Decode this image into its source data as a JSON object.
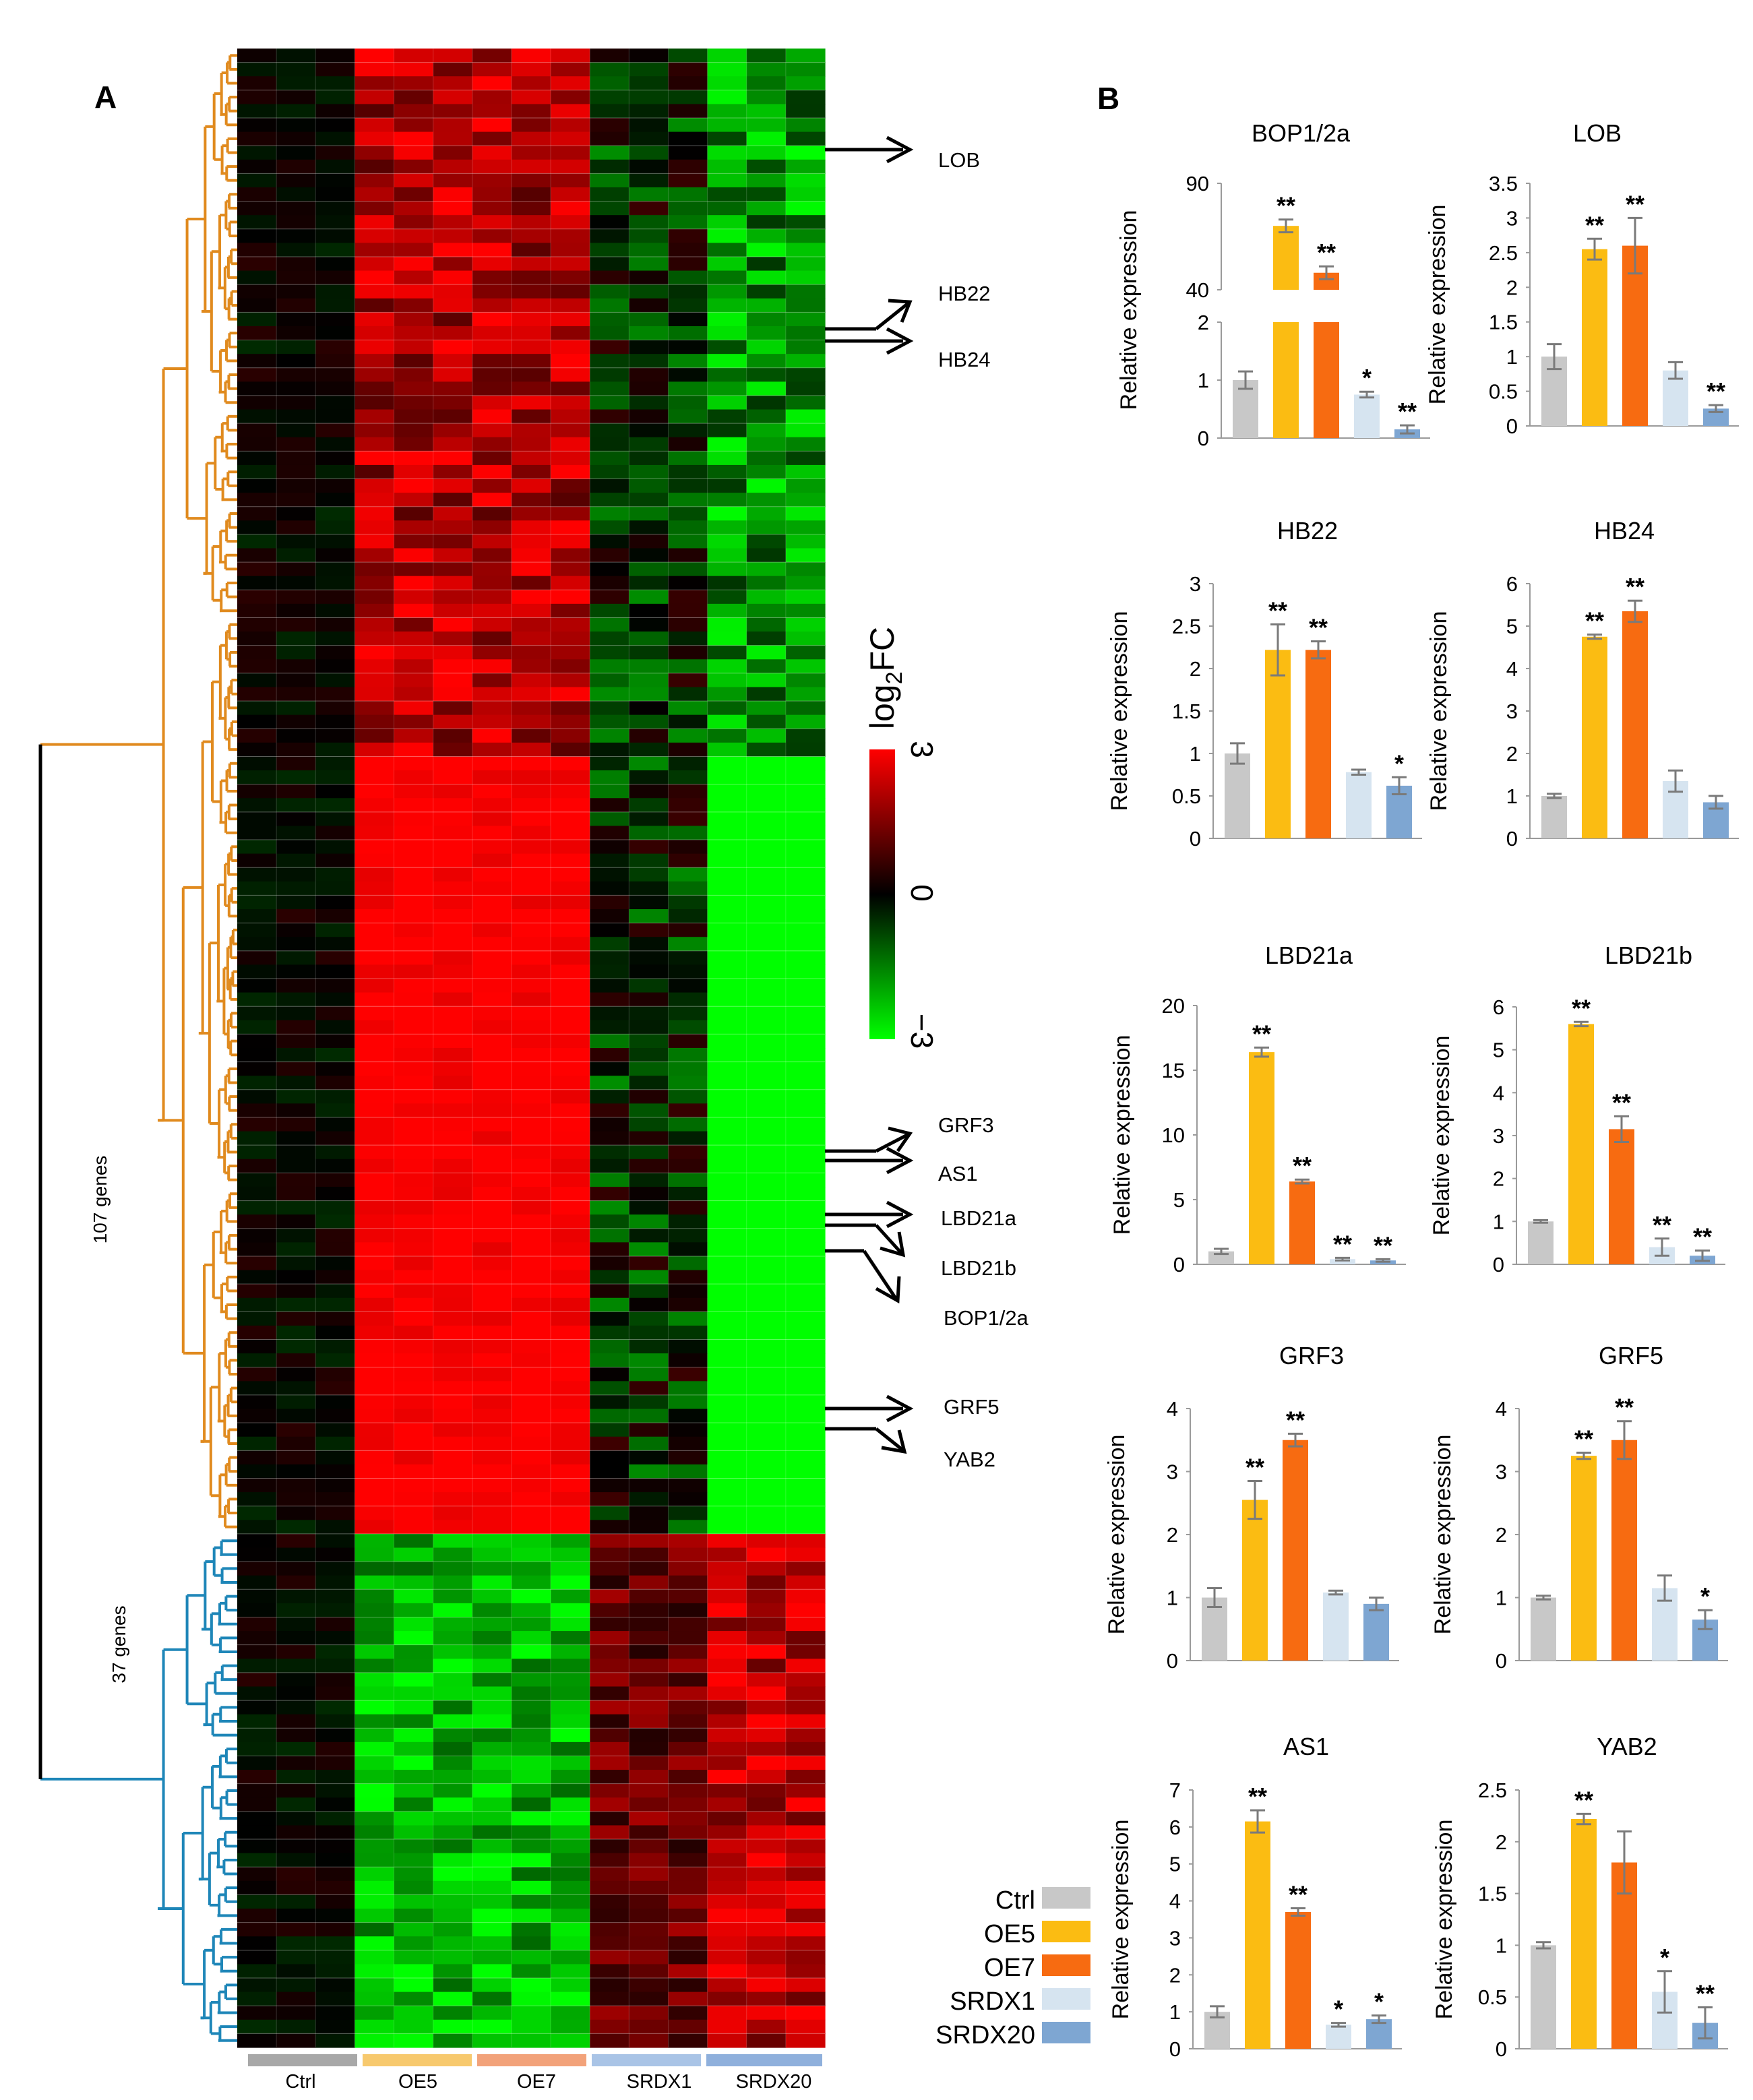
{
  "panel_labels": {
    "a": "A",
    "b": "B"
  },
  "heatmap": {
    "groups": [
      "Ctrl",
      "OE5",
      "OE7",
      "SRDX1",
      "SRDX20"
    ],
    "group_colors": [
      "#a8a8a8",
      "#f7c96e",
      "#f2a27a",
      "#a9c4e6",
      "#8fb0dc"
    ],
    "clusters": [
      {
        "label": "107 genes",
        "gene_count": 107,
        "color": "#e08a1e"
      },
      {
        "label": "37 genes",
        "gene_count": 37,
        "color": "#1e86b8"
      }
    ],
    "annotated_genes": [
      "LOB",
      "HB22",
      "HB24",
      "GRF3",
      "AS1",
      "LBD21a",
      "LBD21b",
      "BOP1/2a",
      "GRF5",
      "YAB2"
    ],
    "colorbar": {
      "title": "log2FC",
      "title_main": "log",
      "title_sub": "2",
      "title_tail": "FC",
      "max": 3,
      "mid": 0,
      "min": -3,
      "max_label": "3",
      "mid_label": "0",
      "min_label": "−3"
    }
  },
  "legend": {
    "items": [
      {
        "label": "Ctrl",
        "color": "#c8c8c8"
      },
      {
        "label": "OE5",
        "color": "#fbbc12"
      },
      {
        "label": "OE7",
        "color": "#f76b11"
      },
      {
        "label": "SRDX1",
        "color": "#d6e4f0"
      },
      {
        "label": "SRDX20",
        "color": "#7ea6d2"
      }
    ]
  },
  "chart_data": [
    {
      "type": "bar",
      "title": "BOP1/2a",
      "ylabel": "Relative expression",
      "categories": [
        "Ctrl",
        "OE5",
        "OE7",
        "SRDX1",
        "SRDX20"
      ],
      "values": [
        1.0,
        70,
        48,
        0.75,
        0.15
      ],
      "errors": [
        0.15,
        3,
        3,
        0.05,
        0.07
      ],
      "significance": [
        "",
        "**",
        "**",
        "*",
        "**"
      ],
      "broken_axis": {
        "lower_ylim": [
          0,
          2
        ],
        "lower_ticks": [
          "0",
          "1",
          "2"
        ],
        "upper_ylim": [
          40,
          90
        ],
        "upper_ticks": [
          "40",
          "90"
        ]
      }
    },
    {
      "type": "bar",
      "title": "LOB",
      "ylabel": "Relative expression",
      "categories": [
        "Ctrl",
        "OE5",
        "OE7",
        "SRDX1",
        "SRDX20"
      ],
      "values": [
        1.0,
        2.55,
        2.6,
        0.8,
        0.25
      ],
      "errors": [
        0.18,
        0.15,
        0.4,
        0.12,
        0.05
      ],
      "significance": [
        "",
        "**",
        "**",
        "",
        "**"
      ],
      "ylim": [
        0,
        3.5
      ],
      "yticks": [
        "0",
        "0.5",
        "1",
        "1.5",
        "2",
        "2.5",
        "3",
        "3.5"
      ]
    },
    {
      "type": "bar",
      "title": "HB22",
      "ylabel": "Relative expression",
      "categories": [
        "Ctrl",
        "OE5",
        "OE7",
        "SRDX1",
        "SRDX20"
      ],
      "values": [
        1.0,
        2.22,
        2.22,
        0.78,
        0.62
      ],
      "errors": [
        0.12,
        0.3,
        0.1,
        0.03,
        0.1
      ],
      "significance": [
        "",
        "**",
        "**",
        "",
        "*"
      ],
      "ylim": [
        0,
        3
      ],
      "yticks": [
        "0",
        "0.5",
        "1",
        "1.5",
        "2",
        "2.5",
        "3"
      ]
    },
    {
      "type": "bar",
      "title": "HB24",
      "ylabel": "Relative expression",
      "categories": [
        "Ctrl",
        "OE5",
        "OE7",
        "SRDX1",
        "SRDX20"
      ],
      "values": [
        1.0,
        4.75,
        5.35,
        1.35,
        0.85
      ],
      "errors": [
        0.05,
        0.05,
        0.25,
        0.25,
        0.15
      ],
      "significance": [
        "",
        "**",
        "**",
        "",
        ""
      ],
      "ylim": [
        0,
        6
      ],
      "yticks": [
        "0",
        "1",
        "2",
        "3",
        "4",
        "5",
        "6"
      ]
    },
    {
      "type": "bar",
      "title": "LBD21a",
      "ylabel": "Relative expression",
      "categories": [
        "Ctrl",
        "OE5",
        "OE7",
        "SRDX1",
        "SRDX20"
      ],
      "values": [
        1.0,
        16.4,
        6.4,
        0.4,
        0.3
      ],
      "errors": [
        0.2,
        0.35,
        0.15,
        0.1,
        0.1
      ],
      "significance": [
        "",
        "**",
        "**",
        "**",
        "**"
      ],
      "ylim": [
        0,
        20
      ],
      "yticks": [
        "0",
        "5",
        "10",
        "15",
        "20"
      ]
    },
    {
      "type": "bar",
      "title": "LBD21b",
      "ylabel": "Relative expression",
      "categories": [
        "Ctrl",
        "OE5",
        "OE7",
        "SRDX1",
        "SRDX20"
      ],
      "values": [
        1.0,
        5.6,
        3.15,
        0.4,
        0.2
      ],
      "errors": [
        0.03,
        0.05,
        0.3,
        0.2,
        0.12
      ],
      "significance": [
        "",
        "**",
        "**",
        "**",
        "**"
      ],
      "ylim": [
        0,
        6
      ],
      "yticks": [
        "0",
        "1",
        "2",
        "3",
        "4",
        "5",
        "6"
      ]
    },
    {
      "type": "bar",
      "title": "GRF3",
      "ylabel": "Relative expression",
      "categories": [
        "Ctrl",
        "OE5",
        "OE7",
        "SRDX1",
        "SRDX20"
      ],
      "values": [
        1.0,
        2.55,
        3.5,
        1.08,
        0.9
      ],
      "errors": [
        0.15,
        0.3,
        0.1,
        0.03,
        0.1
      ],
      "significance": [
        "",
        "**",
        "**",
        "",
        ""
      ],
      "ylim": [
        0,
        4
      ],
      "yticks": [
        "0",
        "1",
        "2",
        "3",
        "4"
      ]
    },
    {
      "type": "bar",
      "title": "GRF5",
      "ylabel": "Relative expression",
      "categories": [
        "Ctrl",
        "OE5",
        "OE7",
        "SRDX1",
        "SRDX20"
      ],
      "values": [
        1.0,
        3.25,
        3.5,
        1.15,
        0.65
      ],
      "errors": [
        0.03,
        0.05,
        0.3,
        0.2,
        0.15
      ],
      "significance": [
        "",
        "**",
        "**",
        "",
        "*"
      ],
      "ylim": [
        0,
        4
      ],
      "yticks": [
        "0",
        "1",
        "2",
        "3",
        "4"
      ]
    },
    {
      "type": "bar",
      "title": "AS1",
      "ylabel": "Relative expression",
      "categories": [
        "Ctrl",
        "OE5",
        "OE7",
        "SRDX1",
        "SRDX20"
      ],
      "values": [
        1.0,
        6.15,
        3.7,
        0.65,
        0.8
      ],
      "errors": [
        0.15,
        0.3,
        0.1,
        0.05,
        0.1
      ],
      "significance": [
        "",
        "**",
        "**",
        "*",
        "*"
      ],
      "ylim": [
        0,
        7
      ],
      "yticks": [
        "0",
        "1",
        "2",
        "3",
        "4",
        "5",
        "6",
        "7"
      ]
    },
    {
      "type": "bar",
      "title": "YAB2",
      "ylabel": "Relative expression",
      "categories": [
        "Ctrl",
        "OE5",
        "OE7",
        "SRDX1",
        "SRDX20"
      ],
      "values": [
        1.0,
        2.22,
        1.8,
        0.55,
        0.25
      ],
      "errors": [
        0.03,
        0.05,
        0.3,
        0.2,
        0.15
      ],
      "significance": [
        "",
        "**",
        "",
        "*",
        "**"
      ],
      "ylim": [
        0,
        2.5
      ],
      "yticks": [
        "0",
        "0.5",
        "1",
        "1.5",
        "2",
        "2.5"
      ]
    }
  ]
}
